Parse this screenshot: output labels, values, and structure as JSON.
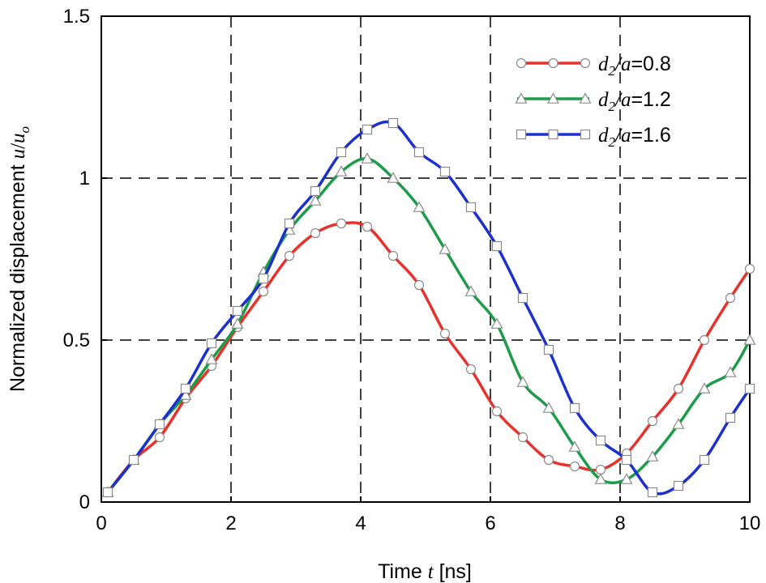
{
  "chart_data": {
    "type": "line",
    "title": "",
    "xlabel": {
      "prefix": "Time ",
      "var": "t",
      "suffix": " [ns]"
    },
    "ylabel": {
      "prefix": "Normalized displacement ",
      "var": "u",
      "slash": "/",
      "var2": "u",
      "sub": "o"
    },
    "xlim": [
      0,
      10
    ],
    "ylim": [
      0,
      1.5
    ],
    "xticks": [
      0,
      2,
      4,
      6,
      8,
      10
    ],
    "yticks": [
      0,
      0.5,
      1,
      1.5
    ],
    "xtick_labels": [
      "0",
      "2",
      "4",
      "6",
      "8",
      "10"
    ],
    "ytick_labels": [
      "0",
      "0.5",
      "1",
      "1.5"
    ],
    "grid": "dashed",
    "legend_position": "top-right",
    "series": [
      {
        "name": "d2/a=0.8",
        "label": {
          "d": "d",
          "sub": "2",
          "a": "/a",
          "eq": "=0.8"
        },
        "color": "#e8312a",
        "marker": "circle",
        "x": [
          0.1,
          0.5,
          0.9,
          1.3,
          1.7,
          2.1,
          2.5,
          2.9,
          3.3,
          3.7,
          4.1,
          4.5,
          4.9,
          5.3,
          5.7,
          6.1,
          6.5,
          6.9,
          7.3,
          7.7,
          8.1,
          8.5,
          8.9,
          9.3,
          9.7,
          10.0
        ],
        "y": [
          0.03,
          0.13,
          0.2,
          0.32,
          0.42,
          0.54,
          0.65,
          0.76,
          0.83,
          0.86,
          0.85,
          0.76,
          0.67,
          0.52,
          0.41,
          0.28,
          0.2,
          0.13,
          0.11,
          0.1,
          0.15,
          0.25,
          0.35,
          0.5,
          0.63,
          0.72
        ]
      },
      {
        "name": "d2/a=1.2",
        "label": {
          "d": "d",
          "sub": "2",
          "a": "/a",
          "eq": "=1.2"
        },
        "color": "#1c9c48",
        "marker": "triangle",
        "x": [
          0.1,
          0.5,
          0.9,
          1.3,
          1.7,
          2.1,
          2.5,
          2.9,
          3.3,
          3.7,
          4.1,
          4.5,
          4.9,
          5.3,
          5.7,
          6.1,
          6.5,
          6.9,
          7.3,
          7.7,
          8.1,
          8.5,
          8.9,
          9.3,
          9.7,
          10.0
        ],
        "y": [
          0.03,
          0.13,
          0.24,
          0.33,
          0.44,
          0.55,
          0.71,
          0.84,
          0.93,
          1.02,
          1.06,
          1.0,
          0.91,
          0.78,
          0.65,
          0.55,
          0.37,
          0.29,
          0.17,
          0.07,
          0.07,
          0.14,
          0.24,
          0.35,
          0.4,
          0.5
        ]
      },
      {
        "name": "d2/a=1.6",
        "label": {
          "d": "d",
          "sub": "2",
          "a": "/a",
          "eq": "=1.6"
        },
        "color": "#1c30d0",
        "marker": "square",
        "x": [
          0.1,
          0.5,
          0.9,
          1.3,
          1.7,
          2.1,
          2.5,
          2.9,
          3.3,
          3.7,
          4.1,
          4.5,
          4.9,
          5.3,
          5.7,
          6.1,
          6.5,
          6.9,
          7.3,
          7.7,
          8.1,
          8.5,
          8.9,
          9.3,
          9.7,
          10.0
        ],
        "y": [
          0.03,
          0.13,
          0.24,
          0.35,
          0.49,
          0.59,
          0.69,
          0.86,
          0.96,
          1.08,
          1.15,
          1.17,
          1.08,
          1.02,
          0.91,
          0.79,
          0.63,
          0.47,
          0.29,
          0.19,
          0.13,
          0.03,
          0.05,
          0.13,
          0.26,
          0.35
        ]
      }
    ]
  }
}
